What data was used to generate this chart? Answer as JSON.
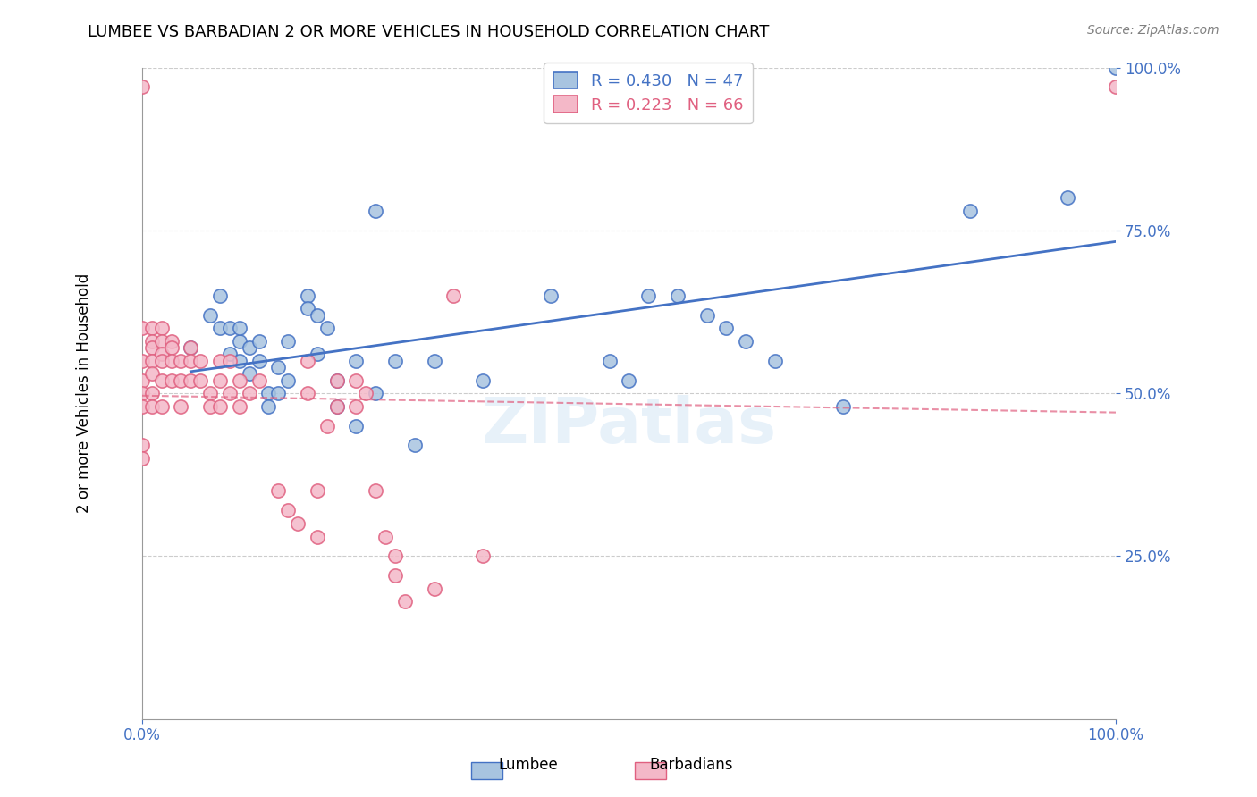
{
  "title": "LUMBEE VS BARBADIAN 2 OR MORE VEHICLES IN HOUSEHOLD CORRELATION CHART",
  "source": "Source: ZipAtlas.com",
  "ylabel": "2 or more Vehicles in Household",
  "xlabel": "",
  "xlim": [
    0.0,
    1.0
  ],
  "ylim": [
    0.0,
    1.0
  ],
  "xtick_labels": [
    "0.0%",
    "100.0%"
  ],
  "ytick_labels": [
    "25.0%",
    "50.0%",
    "75.0%",
    "100.0%"
  ],
  "ytick_positions": [
    0.25,
    0.5,
    0.75,
    1.0
  ],
  "lumbee_R": 0.43,
  "lumbee_N": 47,
  "barbadian_R": 0.223,
  "barbadian_N": 66,
  "lumbee_color": "#a8c4e0",
  "lumbee_line_color": "#4472c4",
  "barbadian_color": "#f4b8c8",
  "barbadian_line_color": "#e06080",
  "watermark": "ZIPatlas",
  "lumbee_x": [
    0.05,
    0.07,
    0.08,
    0.08,
    0.09,
    0.09,
    0.1,
    0.1,
    0.1,
    0.11,
    0.11,
    0.12,
    0.12,
    0.13,
    0.13,
    0.14,
    0.14,
    0.15,
    0.15,
    0.17,
    0.17,
    0.18,
    0.18,
    0.19,
    0.2,
    0.2,
    0.22,
    0.22,
    0.24,
    0.24,
    0.26,
    0.28,
    0.3,
    0.35,
    0.42,
    0.48,
    0.5,
    0.52,
    0.55,
    0.58,
    0.6,
    0.62,
    0.65,
    0.72,
    0.85,
    0.95,
    1.0
  ],
  "lumbee_y": [
    0.57,
    0.62,
    0.6,
    0.65,
    0.56,
    0.6,
    0.58,
    0.55,
    0.6,
    0.57,
    0.53,
    0.58,
    0.55,
    0.5,
    0.48,
    0.54,
    0.5,
    0.58,
    0.52,
    0.65,
    0.63,
    0.56,
    0.62,
    0.6,
    0.52,
    0.48,
    0.45,
    0.55,
    0.78,
    0.5,
    0.55,
    0.42,
    0.55,
    0.52,
    0.65,
    0.55,
    0.52,
    0.65,
    0.65,
    0.62,
    0.6,
    0.58,
    0.55,
    0.48,
    0.78,
    0.8,
    1.0
  ],
  "barbadian_x": [
    0.0,
    0.0,
    0.0,
    0.0,
    0.0,
    0.0,
    0.0,
    0.0,
    0.01,
    0.01,
    0.01,
    0.01,
    0.01,
    0.01,
    0.01,
    0.02,
    0.02,
    0.02,
    0.02,
    0.02,
    0.02,
    0.03,
    0.03,
    0.03,
    0.03,
    0.04,
    0.04,
    0.04,
    0.05,
    0.05,
    0.05,
    0.06,
    0.06,
    0.07,
    0.07,
    0.08,
    0.08,
    0.08,
    0.09,
    0.09,
    0.1,
    0.1,
    0.11,
    0.12,
    0.14,
    0.15,
    0.16,
    0.17,
    0.17,
    0.18,
    0.18,
    0.19,
    0.2,
    0.2,
    0.22,
    0.22,
    0.23,
    0.24,
    0.25,
    0.26,
    0.26,
    0.27,
    0.3,
    0.32,
    0.35,
    1.0
  ],
  "barbadian_y": [
    0.97,
    0.6,
    0.55,
    0.52,
    0.5,
    0.48,
    0.42,
    0.4,
    0.6,
    0.58,
    0.57,
    0.55,
    0.53,
    0.5,
    0.48,
    0.6,
    0.58,
    0.56,
    0.55,
    0.52,
    0.48,
    0.58,
    0.57,
    0.55,
    0.52,
    0.55,
    0.52,
    0.48,
    0.57,
    0.55,
    0.52,
    0.55,
    0.52,
    0.5,
    0.48,
    0.55,
    0.52,
    0.48,
    0.55,
    0.5,
    0.52,
    0.48,
    0.5,
    0.52,
    0.35,
    0.32,
    0.3,
    0.55,
    0.5,
    0.35,
    0.28,
    0.45,
    0.52,
    0.48,
    0.52,
    0.48,
    0.5,
    0.35,
    0.28,
    0.22,
    0.25,
    0.18,
    0.2,
    0.65,
    0.25,
    0.97
  ]
}
